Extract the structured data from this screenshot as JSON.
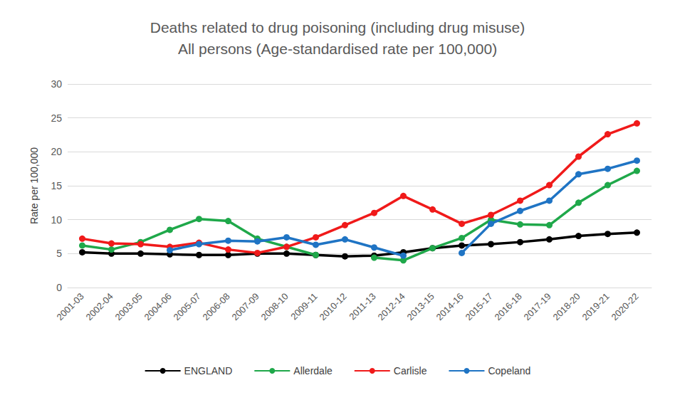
{
  "chart_data": {
    "type": "line",
    "title": "Deaths related to drug poisoning (including drug misuse)\nAll persons (Age-standardised rate per 100,000)",
    "y_label": "Rate per 100,000",
    "categories": [
      "2001-03",
      "2002-04",
      "2003-05",
      "2004-06",
      "2005-07",
      "2006-08",
      "2007-09",
      "2008-10",
      "2009-11",
      "2010-12",
      "2011-13",
      "2012-14",
      "2013-15",
      "2014-16",
      "2015-17",
      "2016-18",
      "2017-19",
      "2018-20",
      "2019-21",
      "2020-22"
    ],
    "series": [
      {
        "name": "ENGLAND",
        "color": "#000000",
        "values": [
          5.2,
          5.0,
          5.0,
          4.9,
          4.8,
          4.8,
          5.0,
          5.0,
          4.8,
          4.6,
          4.7,
          5.2,
          5.8,
          6.2,
          6.4,
          6.7,
          7.1,
          7.6,
          7.9,
          8.1
        ]
      },
      {
        "name": "Allerdale",
        "color": "#1fa84a",
        "values": [
          6.2,
          5.6,
          6.7,
          8.5,
          10.1,
          9.8,
          7.2,
          6.0,
          4.8,
          null,
          4.4,
          4.0,
          5.8,
          7.3,
          10.0,
          9.3,
          9.2,
          12.5,
          15.1,
          17.2
        ]
      },
      {
        "name": "Carlisle",
        "color": "#f01a1a",
        "values": [
          7.2,
          6.5,
          6.4,
          6.0,
          6.6,
          5.6,
          5.1,
          6.0,
          7.4,
          9.2,
          11.0,
          13.5,
          11.5,
          9.4,
          10.7,
          12.8,
          15.1,
          19.3,
          22.6,
          24.2
        ]
      },
      {
        "name": "Copeland",
        "color": "#1f74c4",
        "values": [
          null,
          null,
          null,
          5.5,
          6.4,
          6.9,
          6.8,
          7.4,
          6.3,
          7.1,
          5.9,
          4.7,
          null,
          5.1,
          9.4,
          11.3,
          12.8,
          16.7,
          17.5,
          18.7
        ]
      }
    ],
    "ylim": [
      0,
      30
    ],
    "yticks": [
      0,
      5,
      10,
      15,
      20,
      25,
      30
    ],
    "grid": true,
    "legend": "bottom",
    "marker": "circle"
  }
}
